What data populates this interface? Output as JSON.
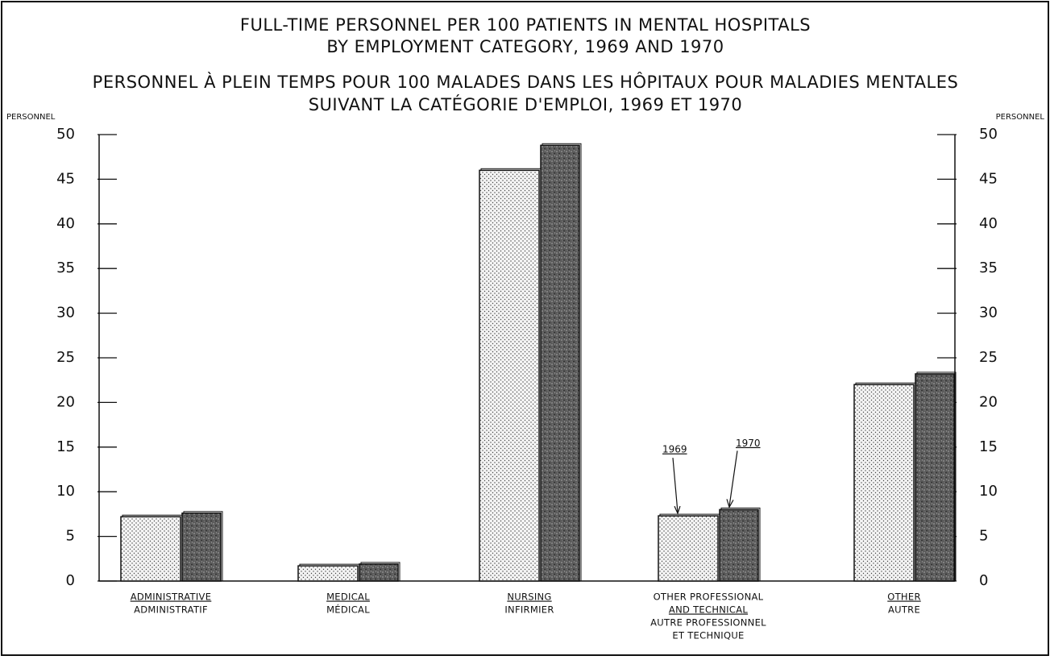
{
  "chart_data": {
    "type": "bar",
    "title_lines": [
      "FULL-TIME PERSONNEL PER 100 PATIENTS IN MENTAL HOSPITALS",
      "BY EMPLOYMENT CATEGORY, 1969 AND 1970",
      "PERSONNEL À PLEIN TEMPS POUR 100 MALADES DANS LES HÔPITAUX POUR MALADIES MENTALES",
      "SUIVANT LA CATÉGORIE D'EMPLOI, 1969 ET 1970"
    ],
    "y_label": "PERSONNEL",
    "y2_label": "PERSONNEL",
    "category_labels": [
      {
        "en": [
          "ADMINISTRATIVE"
        ],
        "fr": [
          "ADMINISTRATIF"
        ]
      },
      {
        "en": [
          "MEDICAL"
        ],
        "fr": [
          "MÉDICAL"
        ]
      },
      {
        "en": [
          "NURSING"
        ],
        "fr": [
          "INFIRMIER"
        ]
      },
      {
        "en": [
          "OTHER PROFESSIONAL",
          "AND TECHNICAL"
        ],
        "fr": [
          "AUTRE PROFESSIONNEL",
          "ET TECHNIQUE"
        ]
      },
      {
        "en": [
          "OTHER"
        ],
        "fr": [
          "AUTRE"
        ]
      }
    ],
    "series": [
      {
        "name": "1969",
        "color": "#f4f4f4",
        "values": [
          7.2,
          1.7,
          46.0,
          7.3,
          22.0
        ]
      },
      {
        "name": "1970",
        "color": "#5a5a5a",
        "values": [
          7.6,
          1.9,
          48.8,
          8.0,
          23.2
        ]
      }
    ],
    "ylim": [
      0,
      50
    ],
    "yticks": [
      0,
      5,
      10,
      15,
      20,
      25,
      30,
      35,
      40,
      45,
      50
    ],
    "y2lim": [
      0,
      50
    ],
    "y2ticks": [
      0,
      5,
      10,
      15,
      20,
      25,
      30,
      35,
      40,
      45,
      50
    ],
    "grid": false
  }
}
